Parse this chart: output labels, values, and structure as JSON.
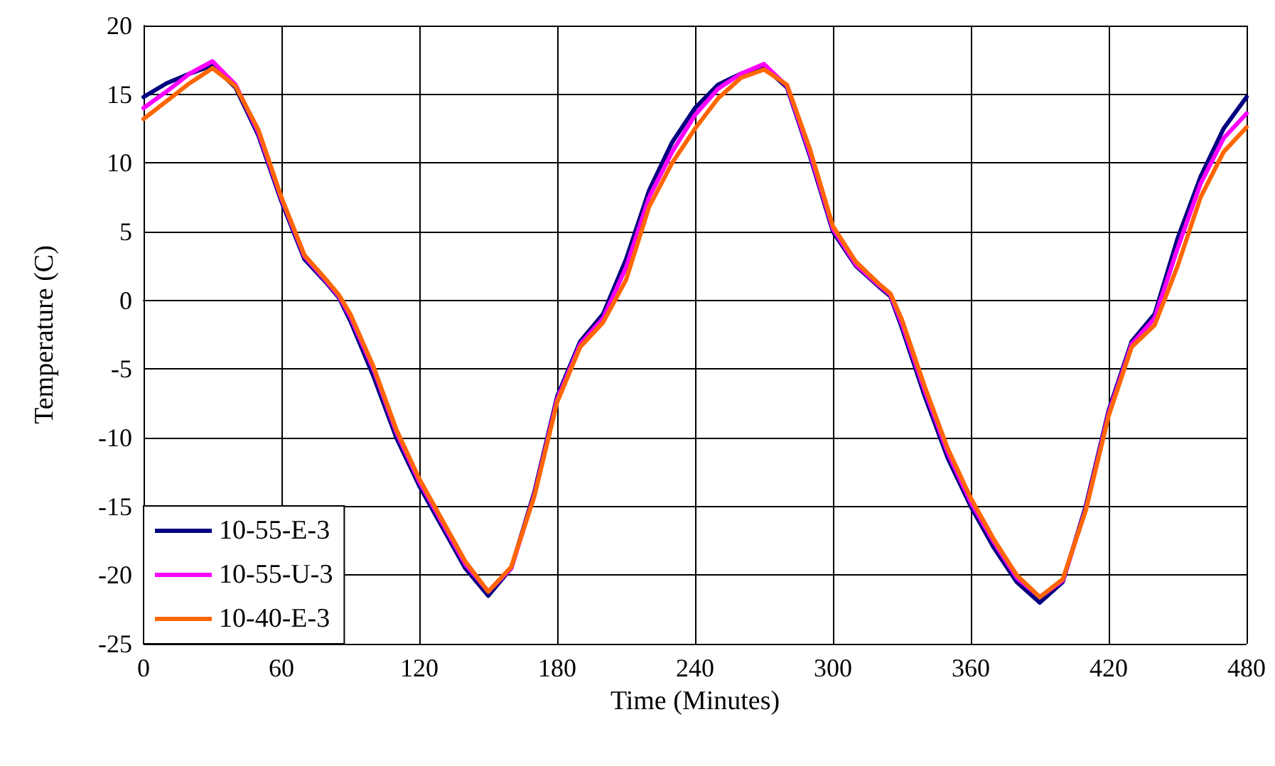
{
  "chart_data": {
    "type": "line",
    "xlabel": "Time (Minutes)",
    "ylabel": "Temperature (C)",
    "x": [
      0,
      10,
      20,
      30,
      40,
      50,
      60,
      70,
      80,
      85,
      90,
      100,
      110,
      120,
      130,
      140,
      150,
      160,
      170,
      180,
      190,
      200,
      210,
      220,
      230,
      240,
      250,
      260,
      270,
      280,
      290,
      300,
      310,
      320,
      325,
      330,
      340,
      350,
      360,
      370,
      380,
      390,
      400,
      410,
      420,
      430,
      440,
      450,
      460,
      470,
      480
    ],
    "series": [
      {
        "name": "10-55-E-3",
        "color": "#000080",
        "values": [
          14.8,
          15.8,
          16.5,
          17.1,
          15.5,
          12,
          7.2,
          3,
          1.2,
          0.2,
          -1.5,
          -5.5,
          -10,
          -13.5,
          -16.5,
          -19.5,
          -21.5,
          -19.5,
          -14,
          -7,
          -3,
          -1,
          3,
          8,
          11.5,
          14,
          15.7,
          16.5,
          17,
          15.5,
          10.5,
          5,
          2.5,
          1,
          0.3,
          -2,
          -7,
          -11.5,
          -15,
          -18,
          -20.5,
          -22,
          -20.5,
          -15,
          -8,
          -3,
          -1,
          4.5,
          9,
          12.5,
          14.8
        ]
      },
      {
        "name": "10-55-U-3",
        "color": "#ff00ff",
        "values": [
          14,
          15.2,
          16.5,
          17.4,
          15.7,
          12.2,
          7.4,
          3.2,
          1.3,
          0.3,
          -1.2,
          -5,
          -9.6,
          -13.2,
          -16.2,
          -19.2,
          -21.2,
          -19.5,
          -14.2,
          -7.2,
          -3.2,
          -1.3,
          2.4,
          7.5,
          10.8,
          13.5,
          15.4,
          16.5,
          17.2,
          15.6,
          10.7,
          5.2,
          2.6,
          1.1,
          0.4,
          -1.7,
          -6.6,
          -11.1,
          -14.7,
          -17.6,
          -20.2,
          -21.6,
          -20.4,
          -15.2,
          -8.2,
          -3.2,
          -1.3,
          3.8,
          8.5,
          11.8,
          13.6
        ]
      },
      {
        "name": "10-40-E-3",
        "color": "#ff6600",
        "values": [
          13.2,
          14.5,
          15.8,
          16.9,
          15.6,
          12.4,
          7.5,
          3.3,
          1.4,
          0.4,
          -1,
          -4.8,
          -9.4,
          -13,
          -16,
          -19,
          -21.2,
          -19.4,
          -14.3,
          -7.4,
          -3.4,
          -1.6,
          1.5,
          6.8,
          10,
          12.5,
          14.7,
          16.2,
          16.8,
          15.7,
          11,
          5.4,
          2.8,
          1.2,
          0.5,
          -1.4,
          -6.3,
          -10.8,
          -14.4,
          -17.4,
          -20,
          -21.6,
          -20.3,
          -15.3,
          -8.4,
          -3.4,
          -1.8,
          2.5,
          7.5,
          10.8,
          12.6
        ]
      }
    ],
    "xlim": [
      0,
      480
    ],
    "xticks": [
      0,
      60,
      120,
      180,
      240,
      300,
      360,
      420,
      480
    ],
    "ylim": [
      -25,
      20
    ],
    "yticks": [
      -25,
      -20,
      -15,
      -10,
      -5,
      0,
      5,
      10,
      15,
      20
    ],
    "grid": true,
    "legend": "bottom left",
    "marker": "none",
    "line_style": "solid"
  }
}
